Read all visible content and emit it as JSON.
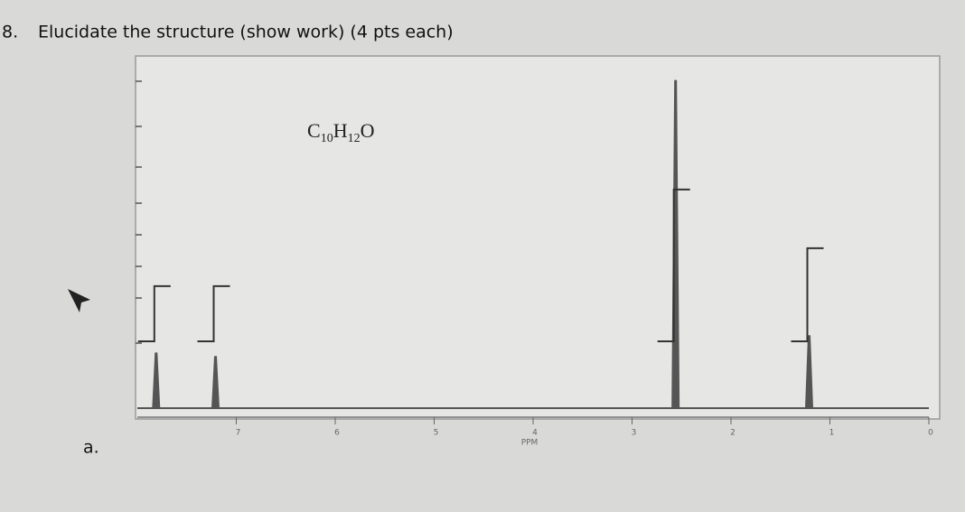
{
  "question": {
    "number": "8.",
    "text": "Elucidate the structure (show work) (4 pts each)"
  },
  "part_label": "a.",
  "chart_data": {
    "type": "spectrum",
    "formula": [
      "C",
      "10",
      "H",
      "12",
      "O"
    ],
    "x_label": "PPM",
    "xlim": [
      8,
      0
    ],
    "xticks": [
      7,
      6,
      5,
      4,
      3,
      2,
      1,
      0
    ],
    "ylim": [
      0,
      100
    ],
    "color": "#555555",
    "peaks": [
      {
        "ppm": 7.81,
        "height": 16,
        "integral": 16
      },
      {
        "ppm": 7.21,
        "height": 15,
        "integral": 16
      },
      {
        "ppm": 2.56,
        "height": 95,
        "integral": 44
      },
      {
        "ppm": 1.21,
        "height": 21,
        "integral": 27
      }
    ]
  }
}
